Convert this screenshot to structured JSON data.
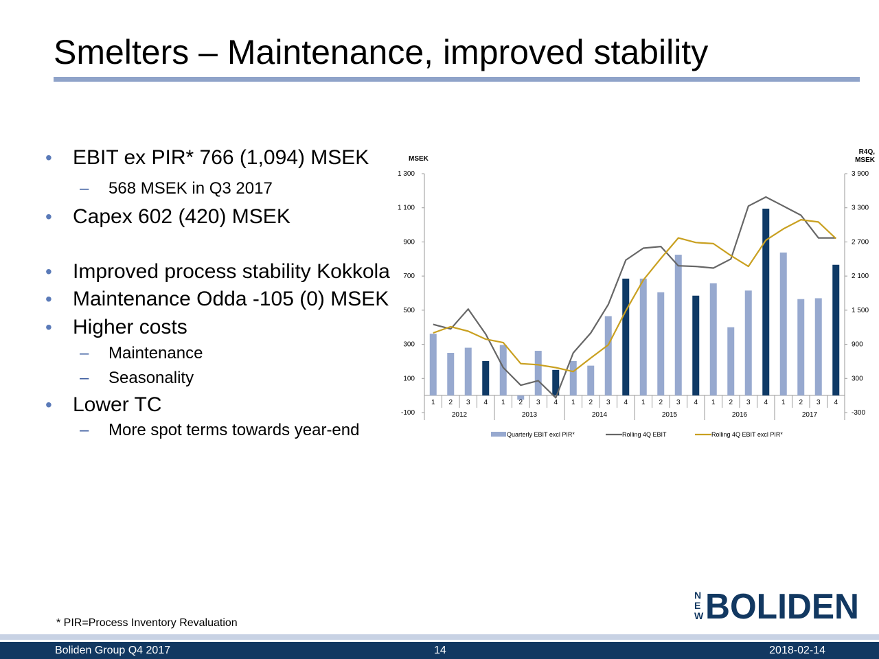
{
  "title": "Smelters – Maintenance, improved stability",
  "bullets": [
    {
      "level": 1,
      "text": "EBIT ex PIR* 766 (1,094) MSEK"
    },
    {
      "level": 2,
      "text": "568 MSEK in Q3 2017"
    },
    {
      "level": 1,
      "text": "Capex 602 (420) MSEK"
    },
    {
      "level": 1,
      "text": "Improved process stability Kokkola"
    },
    {
      "level": 1,
      "text": "Maintenance Odda -105 (0) MSEK"
    },
    {
      "level": 1,
      "text": "Higher costs"
    },
    {
      "level": 2,
      "text": "Maintenance"
    },
    {
      "level": 2,
      "text": "Seasonality"
    },
    {
      "level": 1,
      "text": "Lower TC"
    },
    {
      "level": 2,
      "text": "More spot terms towards year-end"
    }
  ],
  "footnote": "* PIR=Process Inventory Revaluation",
  "footer": {
    "left": "Boliden Group Q4 2017",
    "page": "14",
    "date": "2018-02-14"
  },
  "logo": {
    "prefix_letters": [
      "N",
      "E",
      "W"
    ],
    "word": "BOLIDEN"
  },
  "chart_data": {
    "type": "bar",
    "left_axis_label": "MSEK",
    "right_axis_label_lines": [
      "R4Q,",
      "MSEK"
    ],
    "left_ticks": [
      "1 300",
      "1 100",
      "900",
      "700",
      "500",
      "300",
      "100",
      "-100"
    ],
    "left_tick_values": [
      1300,
      1100,
      900,
      700,
      500,
      300,
      100,
      -100
    ],
    "right_ticks": [
      "3 900",
      "3 300",
      "2 700",
      "2 100",
      "1 500",
      "900",
      "300",
      "-300"
    ],
    "right_tick_values": [
      3900,
      3300,
      2700,
      2100,
      1500,
      900,
      300,
      -300
    ],
    "left_range": [
      -100,
      1300
    ],
    "right_range": [
      -300,
      3900
    ],
    "quarters": [
      "1",
      "2",
      "3",
      "4",
      "1",
      "2",
      "3",
      "4",
      "1",
      "2",
      "3",
      "4",
      "1",
      "2",
      "3",
      "4",
      "1",
      "2",
      "3",
      "4",
      "1",
      "2",
      "3",
      "4"
    ],
    "years": [
      "2012",
      "2013",
      "2014",
      "2015",
      "2016",
      "2017"
    ],
    "colors": {
      "bar": "#97a9cf",
      "bar_q4": "#0f3a66",
      "rolling_ebit": "#666666",
      "rolling_ex_pir": "#c9a020"
    },
    "series": [
      {
        "name": "Quarterly EBIT excl PIR*",
        "kind": "bar",
        "axis": "left",
        "values": [
          362,
          250,
          280,
          202,
          296,
          -25,
          262,
          150,
          202,
          175,
          465,
          685,
          685,
          605,
          825,
          585,
          658,
          400,
          615,
          1095,
          838,
          565,
          570,
          766
        ]
      },
      {
        "name": "Rolling 4Q EBIT",
        "kind": "line",
        "axis": "right",
        "values": [
          1250,
          1170,
          1520,
          1080,
          490,
          180,
          260,
          -40,
          750,
          1100,
          1600,
          2380,
          2590,
          2620,
          2280,
          2270,
          2240,
          2400,
          3330,
          3490,
          3330,
          3170,
          2770,
          2770
        ]
      },
      {
        "name": "Rolling 4Q EBIT excl PIR*",
        "kind": "line",
        "axis": "right",
        "values": [
          1100,
          1210,
          1130,
          990,
          930,
          560,
          540,
          490,
          420,
          660,
          890,
          1490,
          2030,
          2410,
          2770,
          2690,
          2670,
          2460,
          2270,
          2730,
          2930,
          3090,
          3050,
          2760
        ]
      }
    ],
    "legend_position": "bottom"
  }
}
